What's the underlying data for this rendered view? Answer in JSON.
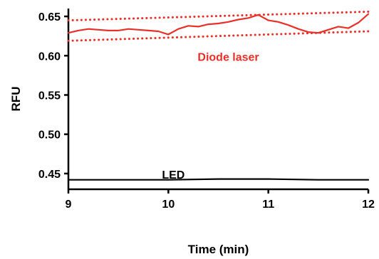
{
  "chart_data": {
    "type": "line",
    "title": "",
    "xlabel": "Time (min)",
    "ylabel": "RFU",
    "xlim": [
      9,
      12
    ],
    "ylim": [
      0.43,
      0.66
    ],
    "xticks": [
      9,
      10,
      11,
      12
    ],
    "yticks": [
      0.45,
      0.5,
      0.55,
      0.6,
      0.65
    ],
    "ytick_labels": [
      "0.45",
      "0.50",
      "0.55",
      "0.60",
      "0.65"
    ],
    "grid": false,
    "series": [
      {
        "name": "Diode laser",
        "color": "#e8302a",
        "style": "solid",
        "x": [
          9.0,
          9.1,
          9.2,
          9.3,
          9.4,
          9.5,
          9.6,
          9.7,
          9.8,
          9.9,
          10.0,
          10.1,
          10.2,
          10.3,
          10.4,
          10.5,
          10.6,
          10.7,
          10.8,
          10.9,
          11.0,
          11.1,
          11.2,
          11.3,
          11.4,
          11.5,
          11.6,
          11.7,
          11.8,
          11.9,
          12.0
        ],
        "y": [
          0.629,
          0.632,
          0.634,
          0.633,
          0.632,
          0.632,
          0.634,
          0.633,
          0.632,
          0.631,
          0.627,
          0.634,
          0.638,
          0.637,
          0.64,
          0.641,
          0.643,
          0.646,
          0.648,
          0.652,
          0.645,
          0.643,
          0.639,
          0.634,
          0.63,
          0.629,
          0.633,
          0.637,
          0.635,
          0.642,
          0.653
        ]
      },
      {
        "name": "LED",
        "color": "#000000",
        "style": "solid",
        "x": [
          9.0,
          9.5,
          10.0,
          10.5,
          11.0,
          11.5,
          12.0
        ],
        "y": [
          0.442,
          0.442,
          0.442,
          0.443,
          0.443,
          0.442,
          0.442
        ]
      },
      {
        "name": "upper bound",
        "color": "#e8302a",
        "style": "dotted",
        "x": [
          9.0,
          12.0
        ],
        "y": [
          0.645,
          0.656
        ]
      },
      {
        "name": "lower bound",
        "color": "#e8302a",
        "style": "dotted",
        "x": [
          9.0,
          12.0
        ],
        "y": [
          0.619,
          0.631
        ]
      }
    ],
    "annotations": [
      {
        "text": "Diode laser",
        "x": 10.6,
        "y": 0.6,
        "color": "#e8302a"
      },
      {
        "text": "LED",
        "x": 10.05,
        "y": 0.45,
        "color": "#000000"
      }
    ]
  }
}
